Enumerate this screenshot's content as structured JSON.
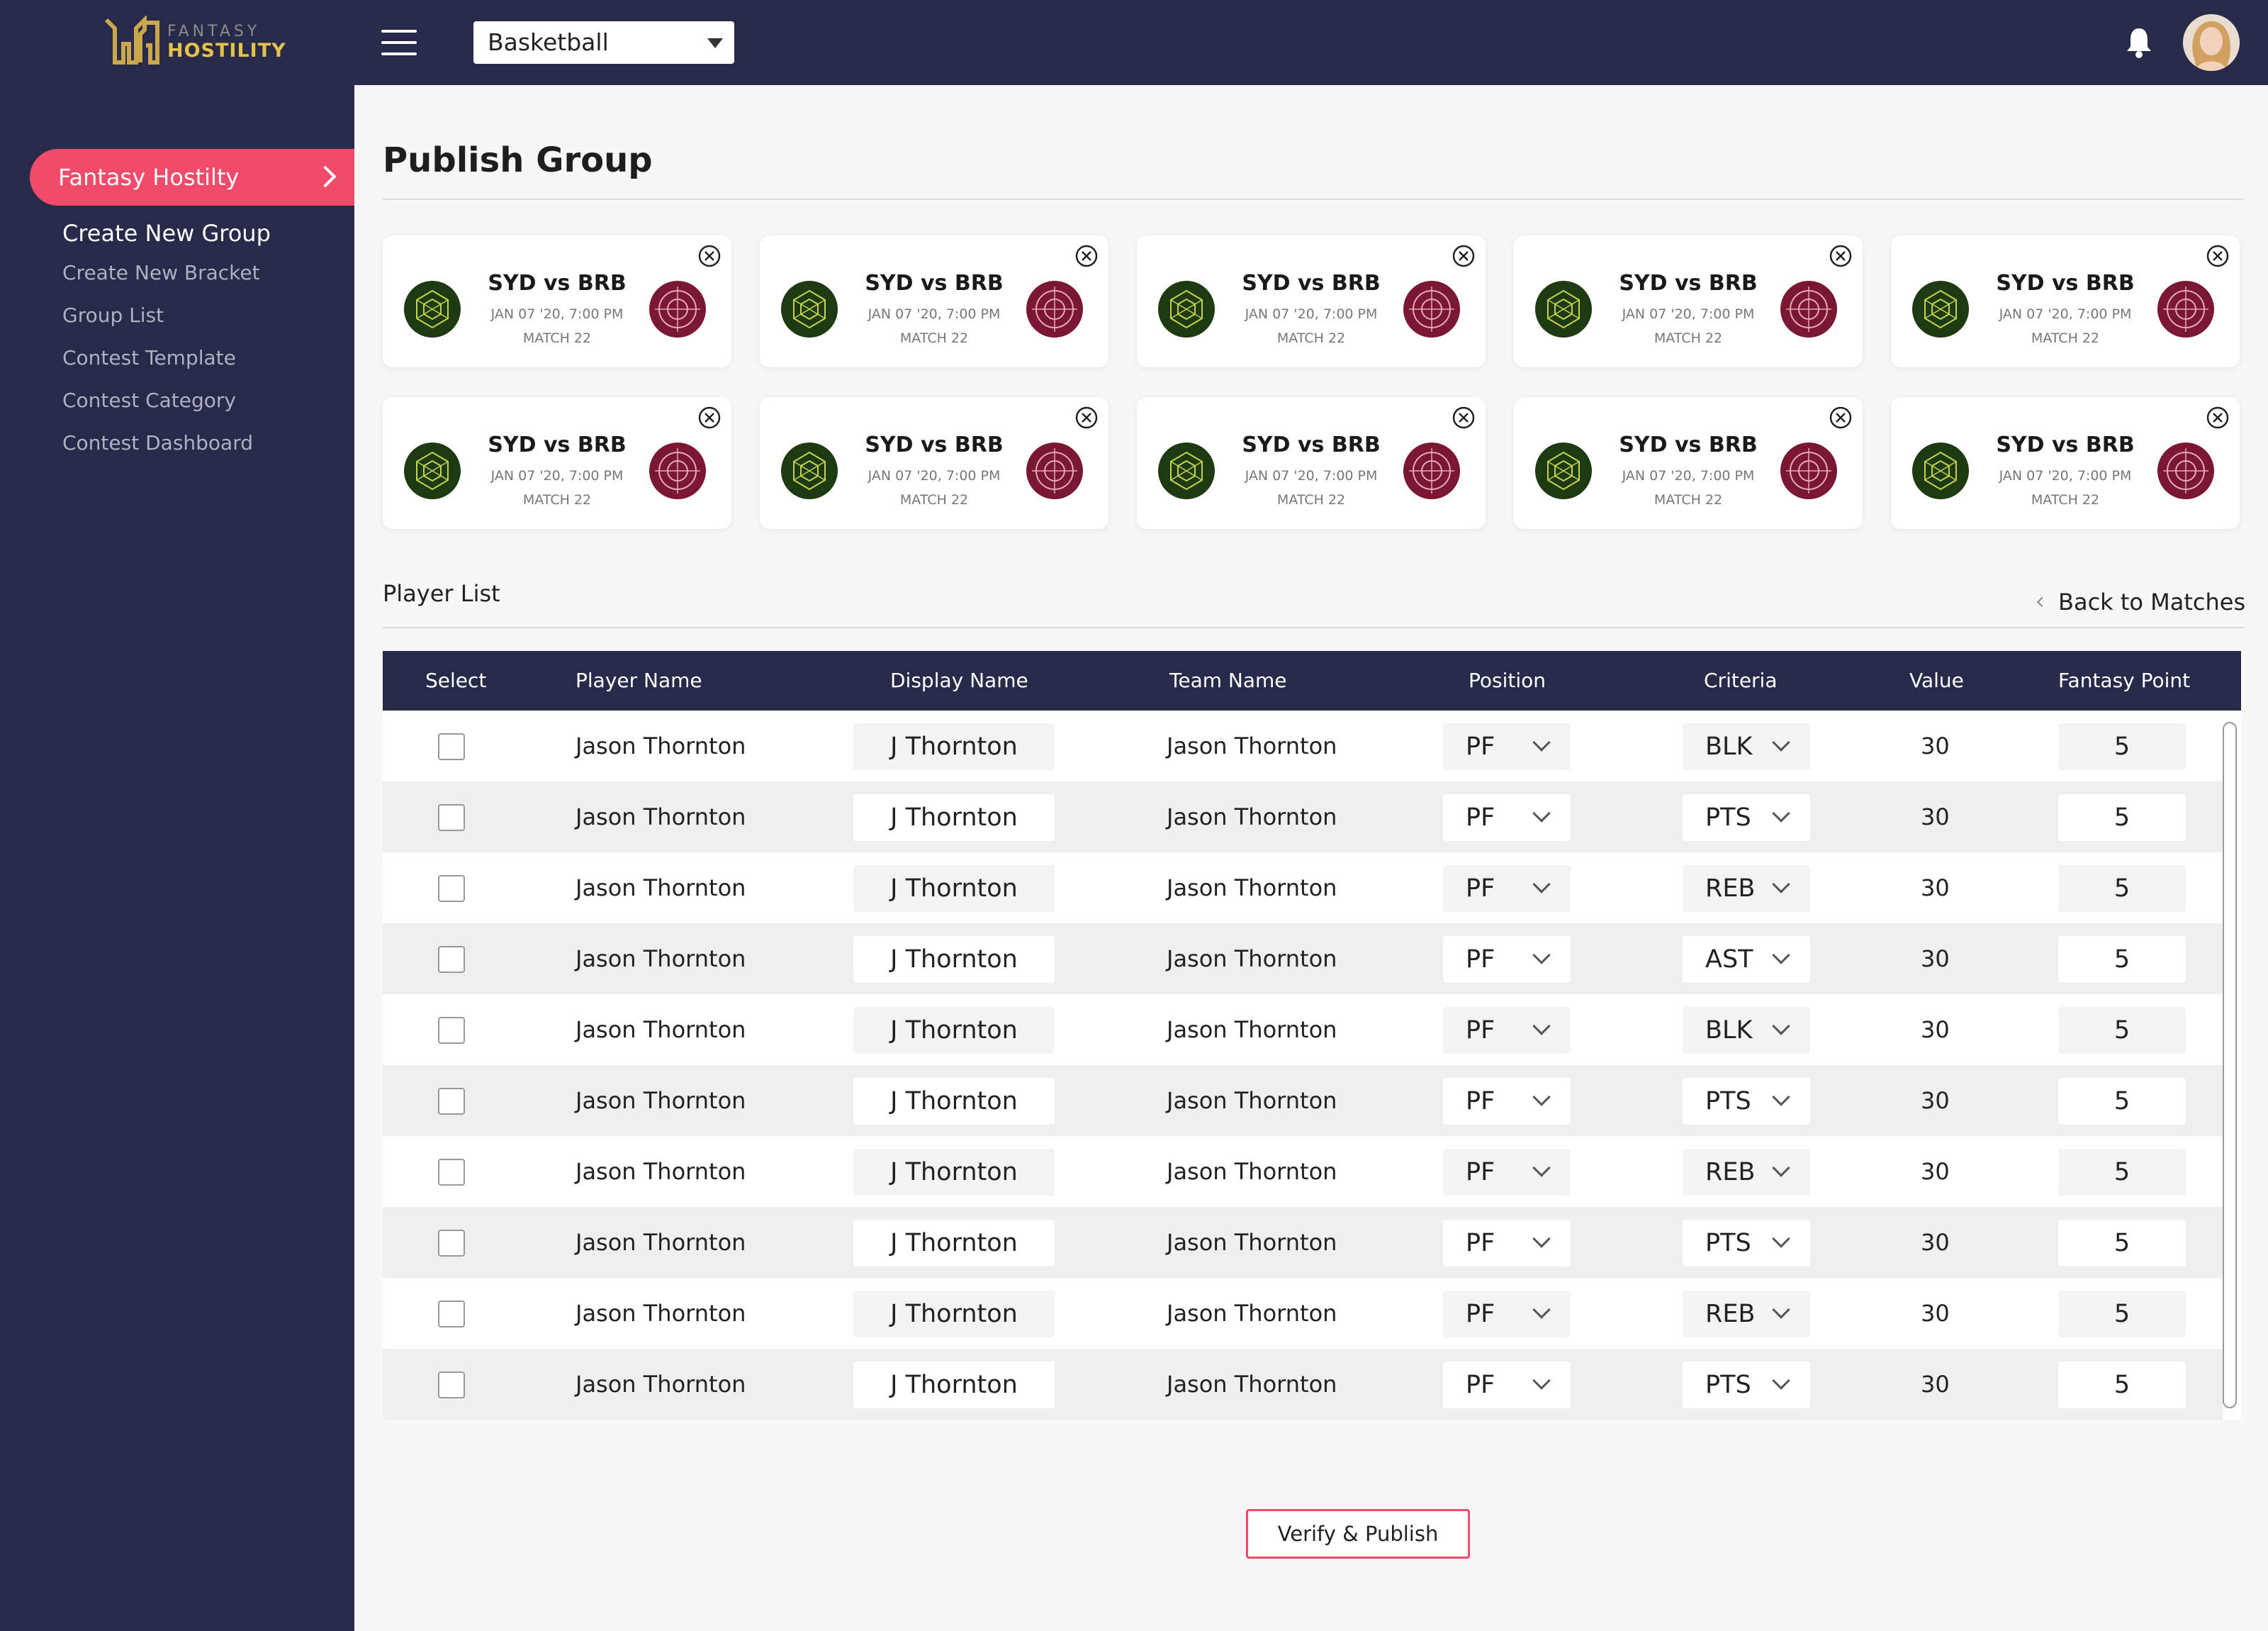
{
  "header": {
    "logo_top": "FANTASY",
    "logo_bottom": "HOSTILITY",
    "sport_select": "Basketball"
  },
  "sidebar": {
    "active_label": "Fantasy Hostilty",
    "items": [
      "Create New Group",
      "Create New Bracket",
      "Group List",
      "Contest Template",
      "Contest Category",
      "Contest Dashboard"
    ],
    "current_item": "Create New Group"
  },
  "page": {
    "title": "Publish Group",
    "player_list_title": "Player List",
    "back_link": "Back to Matches",
    "publish_button": "Verify & Publish"
  },
  "colors": {
    "navy": "#272a48",
    "accent": "#f24b6a",
    "logo_gold": "#e4c24a",
    "team_a": "#1d3a12",
    "team_b": "#7a1733"
  },
  "matches": [
    {
      "title": "SYD vs BRB",
      "date": "JAN 07 '20, 7:00 PM",
      "match": "MATCH 22"
    },
    {
      "title": "SYD vs BRB",
      "date": "JAN 07 '20, 7:00 PM",
      "match": "MATCH 22"
    },
    {
      "title": "SYD vs BRB",
      "date": "JAN 07 '20, 7:00 PM",
      "match": "MATCH 22"
    },
    {
      "title": "SYD vs BRB",
      "date": "JAN 07 '20, 7:00 PM",
      "match": "MATCH 22"
    },
    {
      "title": "SYD vs BRB",
      "date": "JAN 07 '20, 7:00 PM",
      "match": "MATCH 22"
    },
    {
      "title": "SYD vs BRB",
      "date": "JAN 07 '20, 7:00 PM",
      "match": "MATCH 22"
    },
    {
      "title": "SYD vs BRB",
      "date": "JAN 07 '20, 7:00 PM",
      "match": "MATCH 22"
    },
    {
      "title": "SYD vs BRB",
      "date": "JAN 07 '20, 7:00 PM",
      "match": "MATCH 22"
    },
    {
      "title": "SYD vs BRB",
      "date": "JAN 07 '20, 7:00 PM",
      "match": "MATCH 22"
    },
    {
      "title": "SYD vs BRB",
      "date": "JAN 07 '20, 7:00 PM",
      "match": "MATCH 22"
    }
  ],
  "table": {
    "columns": [
      "Select",
      "Player Name",
      "Display Name",
      "Team Name",
      "Position",
      "Criteria",
      "Value",
      "Fantasy Point"
    ],
    "rows": [
      {
        "player": "Jason Thornton",
        "display": "J Thornton",
        "team": "Jason Thornton",
        "position": "PF",
        "criteria": "BLK",
        "value": "30",
        "points": "5"
      },
      {
        "player": "Jason Thornton",
        "display": "J Thornton",
        "team": "Jason Thornton",
        "position": "PF",
        "criteria": "PTS",
        "value": "30",
        "points": "5"
      },
      {
        "player": "Jason Thornton",
        "display": "J Thornton",
        "team": "Jason Thornton",
        "position": "PF",
        "criteria": "REB",
        "value": "30",
        "points": "5"
      },
      {
        "player": "Jason Thornton",
        "display": "J Thornton",
        "team": "Jason Thornton",
        "position": "PF",
        "criteria": "AST",
        "value": "30",
        "points": "5"
      },
      {
        "player": "Jason Thornton",
        "display": "J Thornton",
        "team": "Jason Thornton",
        "position": "PF",
        "criteria": "BLK",
        "value": "30",
        "points": "5"
      },
      {
        "player": "Jason Thornton",
        "display": "J Thornton",
        "team": "Jason Thornton",
        "position": "PF",
        "criteria": "PTS",
        "value": "30",
        "points": "5"
      },
      {
        "player": "Jason Thornton",
        "display": "J Thornton",
        "team": "Jason Thornton",
        "position": "PF",
        "criteria": "REB",
        "value": "30",
        "points": "5"
      },
      {
        "player": "Jason Thornton",
        "display": "J Thornton",
        "team": "Jason Thornton",
        "position": "PF",
        "criteria": "PTS",
        "value": "30",
        "points": "5"
      },
      {
        "player": "Jason Thornton",
        "display": "J Thornton",
        "team": "Jason Thornton",
        "position": "PF",
        "criteria": "REB",
        "value": "30",
        "points": "5"
      },
      {
        "player": "Jason Thornton",
        "display": "J Thornton",
        "team": "Jason Thornton",
        "position": "PF",
        "criteria": "PTS",
        "value": "30",
        "points": "5"
      }
    ]
  }
}
